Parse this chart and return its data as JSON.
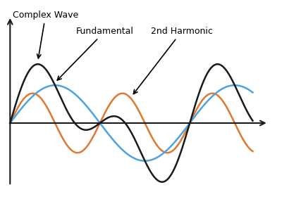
{
  "background_color": "#ffffff",
  "fundamental_color": "#4ba3e3",
  "harmonic_color": "#e07830",
  "complex_color": "#1a1a1a",
  "axis_color": "#1a1a1a",
  "fundamental_amp": 0.7,
  "harmonic_amp": 0.55,
  "label_complex": "Complex Wave",
  "label_fundamental": "Fundamental",
  "label_harmonic": "2nd Harmonic",
  "label_fontsize": 9,
  "label_fontweight": "normal",
  "figsize": [
    4.0,
    3.0
  ],
  "dpi": 100
}
